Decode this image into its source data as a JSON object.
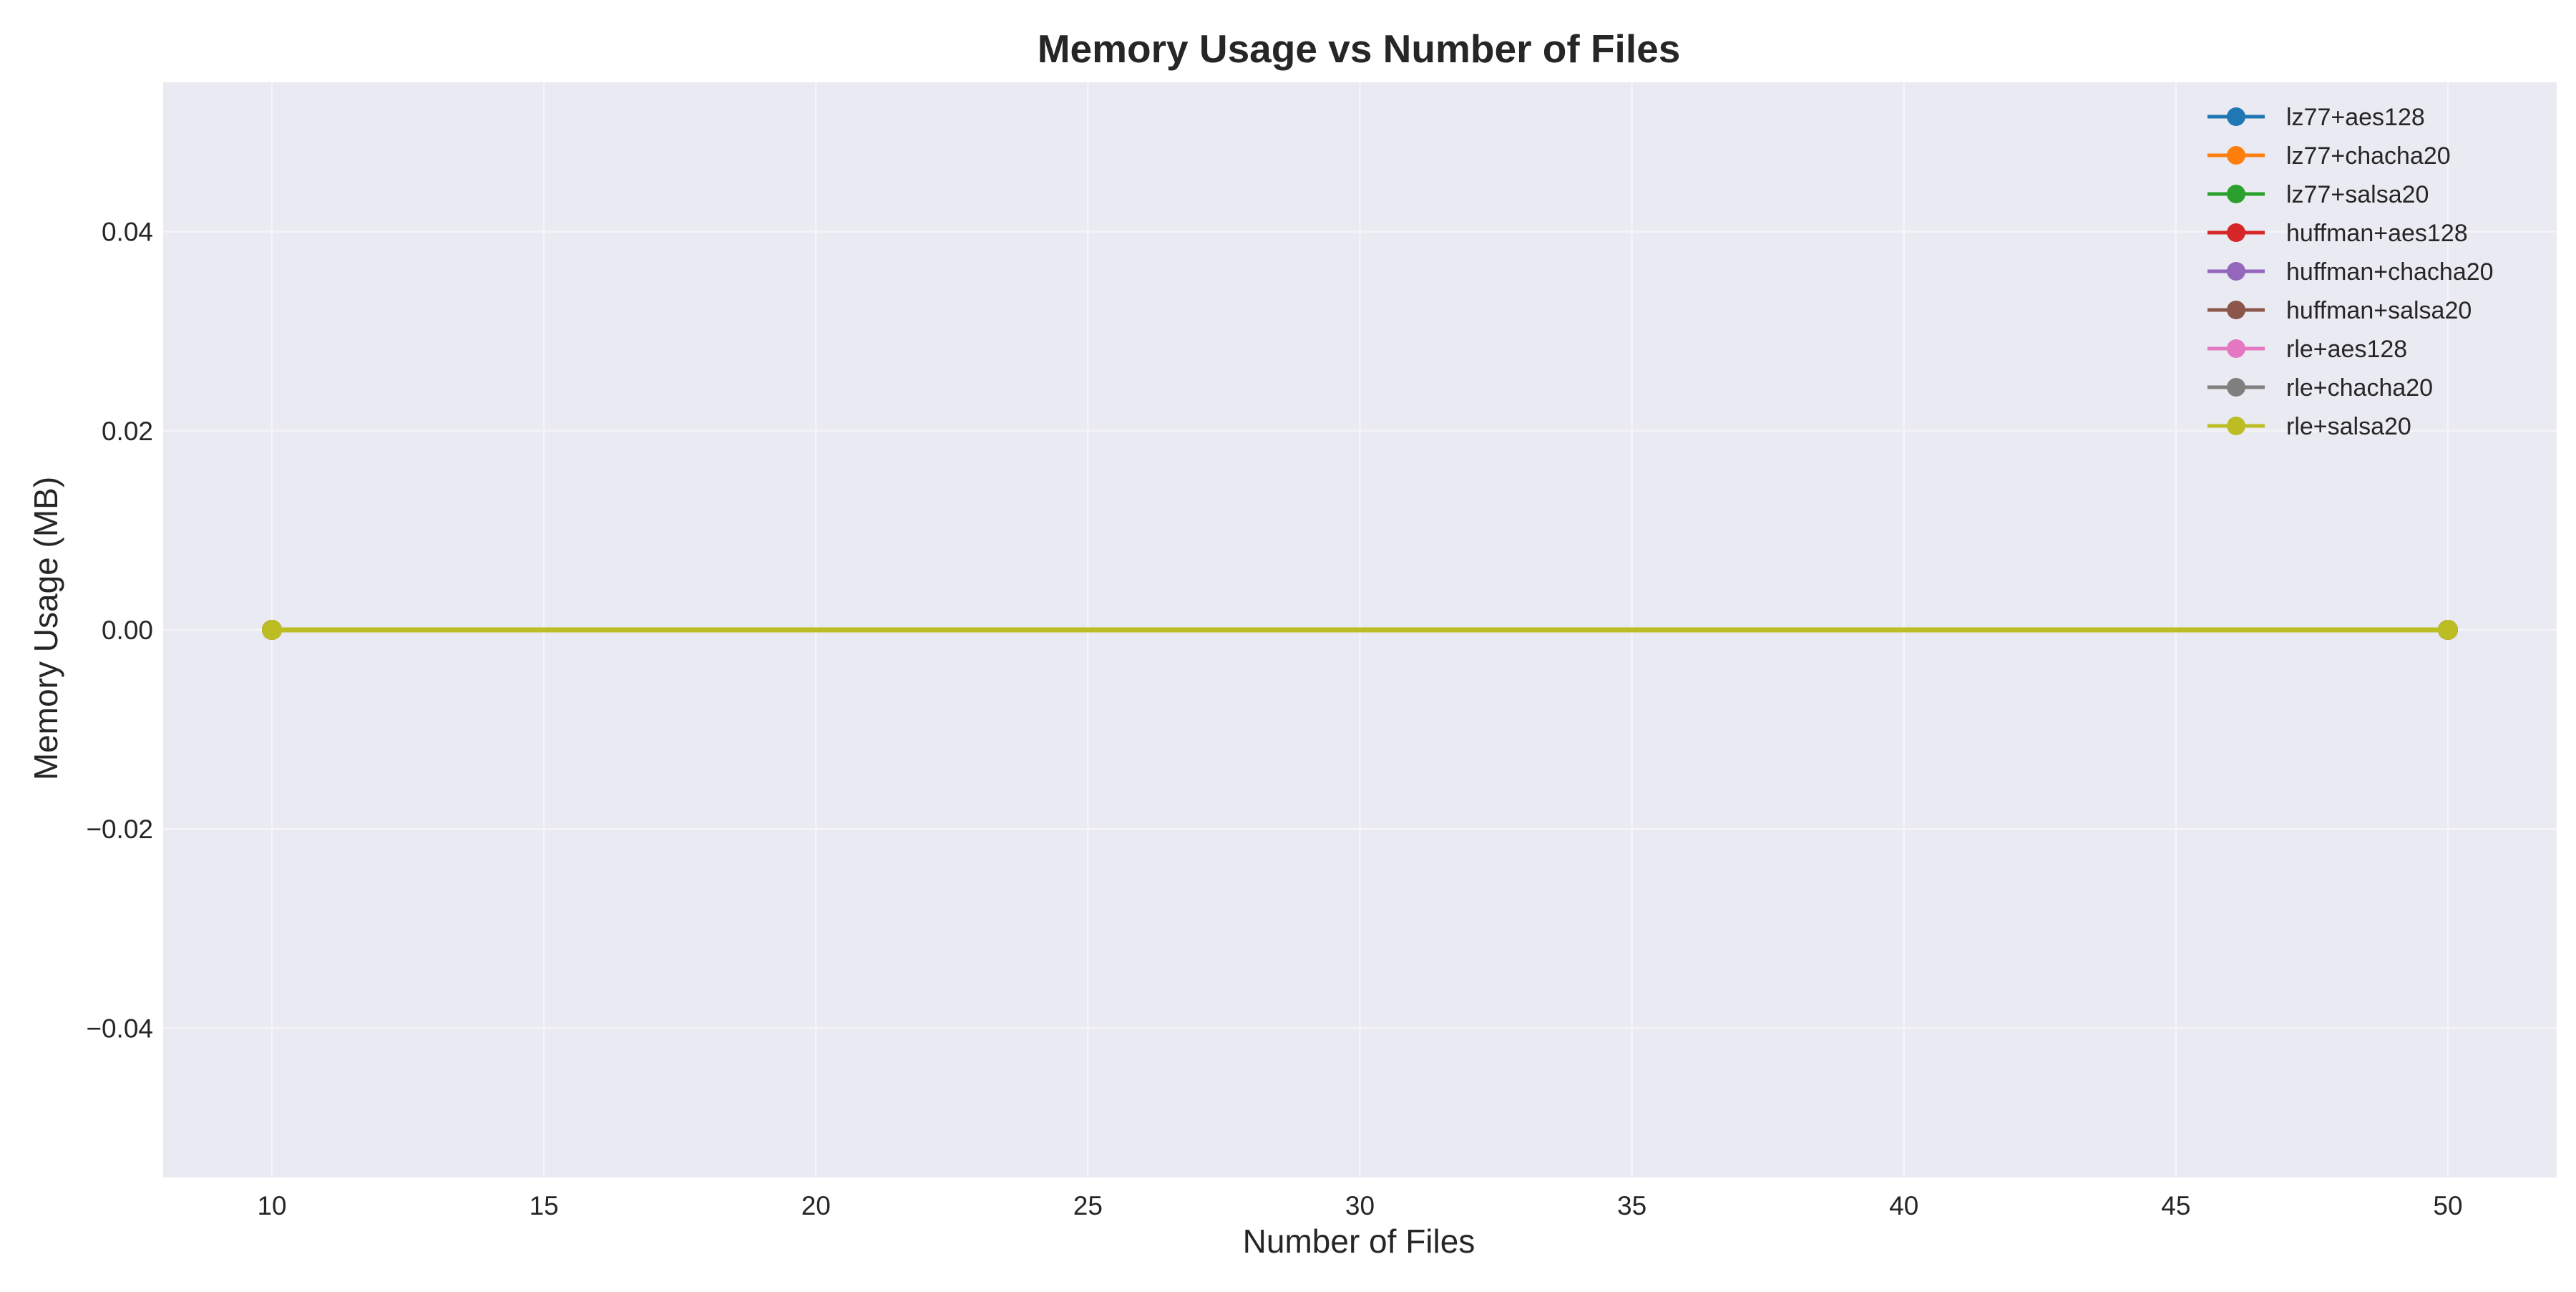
{
  "chart_data": {
    "type": "line",
    "title": "Memory Usage vs Number of Files",
    "xlabel": "Number of Files",
    "ylabel": "Memory Usage (MB)",
    "xlim": [
      8,
      52
    ],
    "ylim": [
      -0.055,
      0.055
    ],
    "x_ticks": [
      10,
      15,
      20,
      25,
      30,
      35,
      40,
      45,
      50
    ],
    "x_tick_labels": [
      "10",
      "15",
      "20",
      "25",
      "30",
      "35",
      "40",
      "45",
      "50"
    ],
    "y_ticks": [
      0.04,
      0.02,
      0.0,
      -0.02,
      -0.04
    ],
    "y_tick_labels": [
      "0.04",
      "0.02",
      "0.00",
      "−0.02",
      "−0.04"
    ],
    "grid": true,
    "legend_position": "top-right",
    "x": [
      10,
      50
    ],
    "series": [
      {
        "name": "lz77+aes128",
        "color": "#1f77b4",
        "values": [
          0,
          0
        ]
      },
      {
        "name": "lz77+chacha20",
        "color": "#ff7f0e",
        "values": [
          0,
          0
        ]
      },
      {
        "name": "lz77+salsa20",
        "color": "#2ca02c",
        "values": [
          0,
          0
        ]
      },
      {
        "name": "huffman+aes128",
        "color": "#d62728",
        "values": [
          0,
          0
        ]
      },
      {
        "name": "huffman+chacha20",
        "color": "#9467bd",
        "values": [
          0,
          0
        ]
      },
      {
        "name": "huffman+salsa20",
        "color": "#8c564b",
        "values": [
          0,
          0
        ]
      },
      {
        "name": "rle+aes128",
        "color": "#e377c2",
        "values": [
          0,
          0
        ]
      },
      {
        "name": "rle+chacha20",
        "color": "#7f7f7f",
        "values": [
          0,
          0
        ]
      },
      {
        "name": "rle+salsa20",
        "color": "#bcbd22",
        "values": [
          0,
          0
        ]
      }
    ]
  }
}
